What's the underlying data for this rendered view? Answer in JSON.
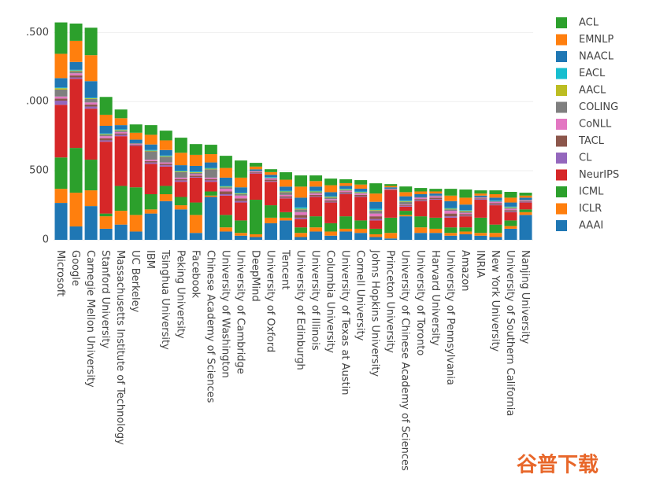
{
  "chart_data": {
    "type": "stacked_bar",
    "categories": [
      "Microsoft",
      "Google",
      "Carnegie Mellon University",
      "Stanford University",
      "Massachusetts Institute of Technology",
      "UC Berkeley",
      "IBM",
      "Tsinghua University",
      "Peking University",
      "Facebook",
      "Chinese Academy of Sciences",
      "University of Washington",
      "University of Cambridge",
      "DeepMind",
      "University of Oxford",
      "Tencent",
      "University of Edinburgh",
      "University of Illinois",
      "Columbia University",
      "University of Texas at Austin",
      "Cornell University",
      "Johns Hopkins University",
      "Princeton University",
      "University of Chinese Academy of Sciences",
      "University of Toronto",
      "Harvard University",
      "University of Pennsylvania",
      "Amazon",
      "INRIA",
      "New York University",
      "University of Southern California",
      "Nanjing University"
    ],
    "series": [
      {
        "name": "AAAI",
        "color": "#1f77b4",
        "values": [
          267,
          97,
          244,
          80,
          110,
          60,
          190,
          280,
          220,
          50,
          310,
          60,
          30,
          20,
          120,
          140,
          20,
          60,
          30,
          60,
          50,
          20,
          10,
          170,
          50,
          50,
          30,
          40,
          30,
          20,
          80,
          180
        ]
      },
      {
        "name": "ICLR",
        "color": "#ff7f0e",
        "values": [
          102,
          244,
          114,
          90,
          100,
          120,
          30,
          50,
          30,
          130,
          10,
          30,
          20,
          20,
          40,
          20,
          30,
          30,
          30,
          20,
          30,
          20,
          40,
          10,
          40,
          30,
          20,
          20,
          20,
          30,
          20,
          20
        ]
      },
      {
        "name": "ICML",
        "color": "#2ca02c",
        "values": [
          227,
          324,
          222,
          20,
          180,
          200,
          110,
          60,
          60,
          90,
          30,
          90,
          90,
          250,
          90,
          40,
          40,
          80,
          60,
          90,
          60,
          40,
          110,
          30,
          80,
          80,
          40,
          30,
          110,
          60,
          40,
          20
        ]
      },
      {
        "name": "NeurIPS",
        "color": "#d62728",
        "values": [
          381,
          500,
          369,
          520,
          360,
          300,
          220,
          140,
          110,
          180,
          70,
          140,
          130,
          190,
          170,
          100,
          60,
          140,
          150,
          160,
          170,
          60,
          200,
          30,
          110,
          130,
          70,
          80,
          130,
          140,
          60,
          50
        ]
      },
      {
        "name": "CL",
        "color": "#9467bd",
        "values": [
          30,
          10,
          15,
          10,
          10,
          5,
          10,
          10,
          10,
          5,
          10,
          10,
          10,
          5,
          5,
          5,
          10,
          5,
          5,
          5,
          5,
          10,
          0,
          5,
          5,
          5,
          10,
          5,
          5,
          5,
          5,
          5
        ]
      },
      {
        "name": "TACL",
        "color": "#8c564b",
        "values": [
          15,
          15,
          15,
          15,
          10,
          5,
          10,
          10,
          10,
          10,
          10,
          20,
          20,
          5,
          10,
          10,
          20,
          10,
          10,
          10,
          10,
          20,
          5,
          5,
          10,
          10,
          20,
          10,
          5,
          10,
          10,
          5
        ]
      },
      {
        "name": "CoNLL",
        "color": "#e377c2",
        "values": [
          15,
          15,
          15,
          15,
          10,
          5,
          10,
          10,
          10,
          10,
          10,
          20,
          20,
          5,
          10,
          10,
          20,
          10,
          10,
          10,
          10,
          20,
          5,
          5,
          10,
          10,
          20,
          10,
          5,
          10,
          10,
          5
        ]
      },
      {
        "name": "COLING",
        "color": "#7f7f7f",
        "values": [
          50,
          15,
          25,
          10,
          10,
          5,
          60,
          40,
          40,
          10,
          60,
          10,
          10,
          5,
          5,
          20,
          20,
          10,
          10,
          5,
          5,
          20,
          0,
          20,
          5,
          5,
          10,
          10,
          5,
          5,
          5,
          5
        ]
      },
      {
        "name": "AACL",
        "color": "#bcbd22",
        "values": [
          10,
          5,
          5,
          5,
          5,
          0,
          5,
          5,
          5,
          5,
          5,
          5,
          5,
          0,
          0,
          5,
          5,
          5,
          5,
          5,
          5,
          5,
          0,
          5,
          0,
          0,
          5,
          5,
          0,
          0,
          5,
          0
        ]
      },
      {
        "name": "EACL",
        "color": "#17becf",
        "values": [
          5,
          5,
          5,
          5,
          5,
          0,
          5,
          5,
          5,
          5,
          5,
          5,
          5,
          0,
          5,
          5,
          10,
          5,
          5,
          5,
          5,
          10,
          0,
          5,
          0,
          0,
          5,
          5,
          0,
          5,
          5,
          0
        ]
      },
      {
        "name": "NAACL",
        "color": "#1f77b4",
        "values": [
          68,
          57,
          119,
          55,
          30,
          25,
          40,
          40,
          40,
          40,
          40,
          60,
          40,
          10,
          15,
          30,
          70,
          30,
          30,
          20,
          20,
          50,
          10,
          30,
          20,
          15,
          50,
          40,
          10,
          20,
          30,
          15
        ]
      },
      {
        "name": "EMNLP",
        "color": "#ff7f0e",
        "values": [
          176,
          153,
          188,
          80,
          50,
          50,
          70,
          70,
          90,
          80,
          60,
          70,
          70,
          20,
          20,
          50,
          80,
          40,
          50,
          20,
          30,
          60,
          10,
          30,
          20,
          15,
          40,
          50,
          15,
          25,
          35,
          15
        ]
      },
      {
        "name": "ACL",
        "color": "#2ca02c",
        "values": [
          227,
          125,
          199,
          129,
          63,
          60,
          70,
          70,
          109,
          78,
          68,
          88,
          124,
          27,
          21,
          54,
          81,
          41,
          48,
          28,
          32,
          74,
          13,
          41,
          25,
          19,
          49,
          59,
          23,
          28,
          42,
          21
        ]
      }
    ],
    "ylim": [
      0,
      1650
    ],
    "yticks": [
      0,
      500,
      {
        "value": 1000,
        "label": ".000"
      },
      {
        "value": 1500,
        "label": ".500"
      }
    ],
    "grid": true,
    "legend": "right",
    "watermark": "谷普下载"
  }
}
